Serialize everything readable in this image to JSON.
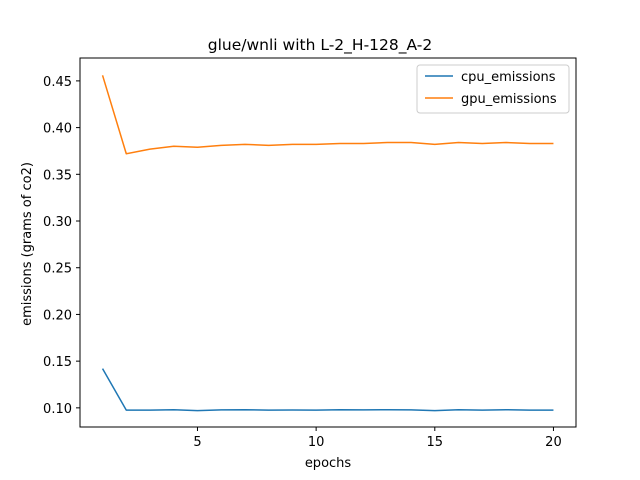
{
  "chart_data": {
    "type": "line",
    "title": "glue/wnli with L-2_H-128_A-2",
    "xlabel": "epochs",
    "ylabel": "emissions (grams of co2)",
    "xlim": [
      0.05,
      20.95
    ],
    "ylim": [
      0.0795,
      0.4745
    ],
    "xticks": [
      5,
      10,
      15,
      20
    ],
    "xtick_labels": [
      "5",
      "10",
      "15",
      "20"
    ],
    "yticks": [
      0.1,
      0.15,
      0.2,
      0.25,
      0.3,
      0.35,
      0.4,
      0.45
    ],
    "ytick_labels": [
      "0.10",
      "0.15",
      "0.20",
      "0.25",
      "0.30",
      "0.35",
      "0.40",
      "0.45"
    ],
    "grid": false,
    "legend_position": "top-right",
    "x": [
      1,
      2,
      3,
      4,
      5,
      6,
      7,
      8,
      9,
      10,
      11,
      12,
      13,
      14,
      15,
      16,
      17,
      18,
      19,
      20
    ],
    "series": [
      {
        "name": "cpu_emissions",
        "color": "#1f77b4",
        "values": [
          0.142,
          0.0975,
          0.0975,
          0.098,
          0.097,
          0.0978,
          0.098,
          0.0975,
          0.0977,
          0.0976,
          0.098,
          0.0978,
          0.098,
          0.0978,
          0.097,
          0.098,
          0.0976,
          0.098,
          0.0975,
          0.0975
        ]
      },
      {
        "name": "gpu_emissions",
        "color": "#ff7f0e",
        "values": [
          0.456,
          0.372,
          0.377,
          0.38,
          0.379,
          0.381,
          0.382,
          0.381,
          0.382,
          0.382,
          0.383,
          0.383,
          0.384,
          0.384,
          0.382,
          0.384,
          0.383,
          0.384,
          0.383,
          0.383
        ]
      }
    ]
  }
}
